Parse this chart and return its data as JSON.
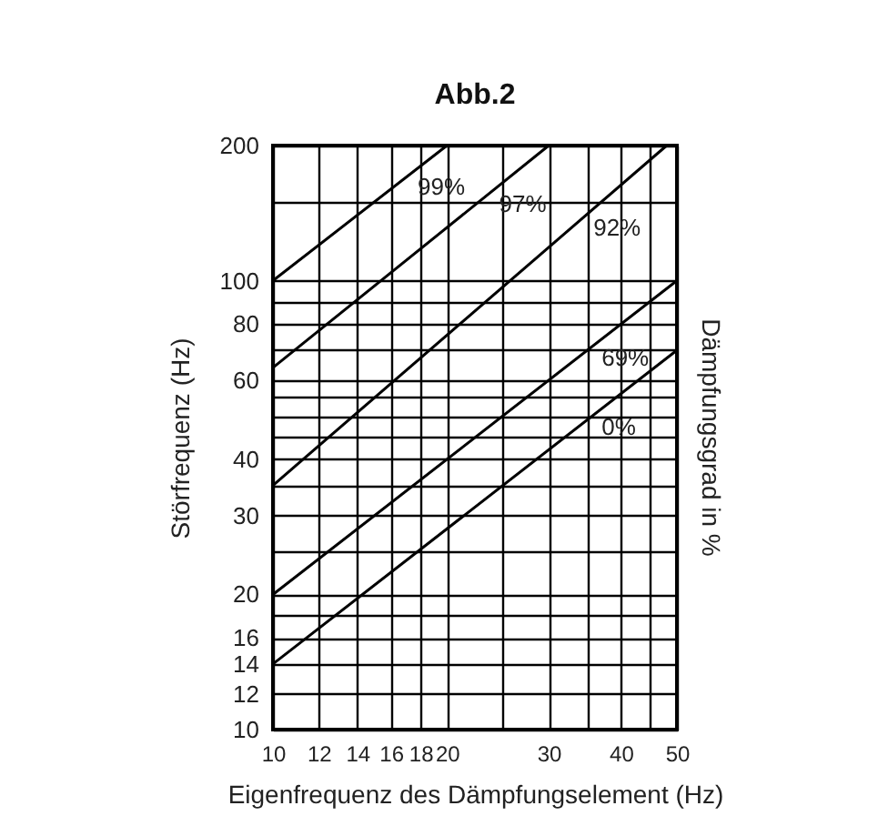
{
  "chart_data": {
    "type": "line",
    "title": "Abb.2",
    "xlabel": "Eigenfrequenz des Dämpfungselement (Hz)",
    "ylabel": "Störfrequenz (Hz)",
    "y2label": "Dämpfungsgrad in %",
    "series": [
      {
        "name": "99%",
        "color": "#000000",
        "x": [
          10,
          20
        ],
        "values": [
          100,
          200
        ]
      },
      {
        "name": "97%",
        "color": "#000000",
        "x": [
          10,
          30
        ],
        "values": [
          64,
          200
        ]
      },
      {
        "name": "92%",
        "color": "#000000",
        "x": [
          10,
          48
        ],
        "values": [
          35,
          200
        ]
      },
      {
        "name": "69%",
        "color": "#000000",
        "x": [
          10,
          50
        ],
        "values": [
          20,
          100
        ]
      },
      {
        "name": "0%",
        "color": "#000000",
        "x": [
          10,
          50
        ],
        "values": [
          14,
          70
        ]
      }
    ],
    "log": "xy",
    "xlim": [
      10,
      50
    ],
    "ylim": [
      10,
      200
    ],
    "xticks": [
      10,
      12,
      14,
      16,
      18,
      20,
      {
        "value": 25,
        "label": null
      },
      30,
      {
        "value": 35,
        "label": null
      },
      40,
      {
        "value": 45,
        "label": null
      },
      50
    ],
    "yticks": [
      10,
      12,
      14,
      16,
      {
        "value": 18,
        "label": null
      },
      20,
      {
        "value": 25,
        "label": null
      },
      30,
      {
        "value": 35,
        "label": null
      },
      40,
      {
        "value": 45,
        "label": null
      },
      {
        "value": 50,
        "label": null
      },
      {
        "value": 55,
        "label": null
      },
      60,
      {
        "value": 70,
        "label": null
      },
      80,
      {
        "value": 90,
        "label": null
      },
      100,
      {
        "value": 150,
        "label": null
      },
      200
    ],
    "grid": true,
    "legend": false,
    "marker": "none",
    "line_style": "solid"
  }
}
